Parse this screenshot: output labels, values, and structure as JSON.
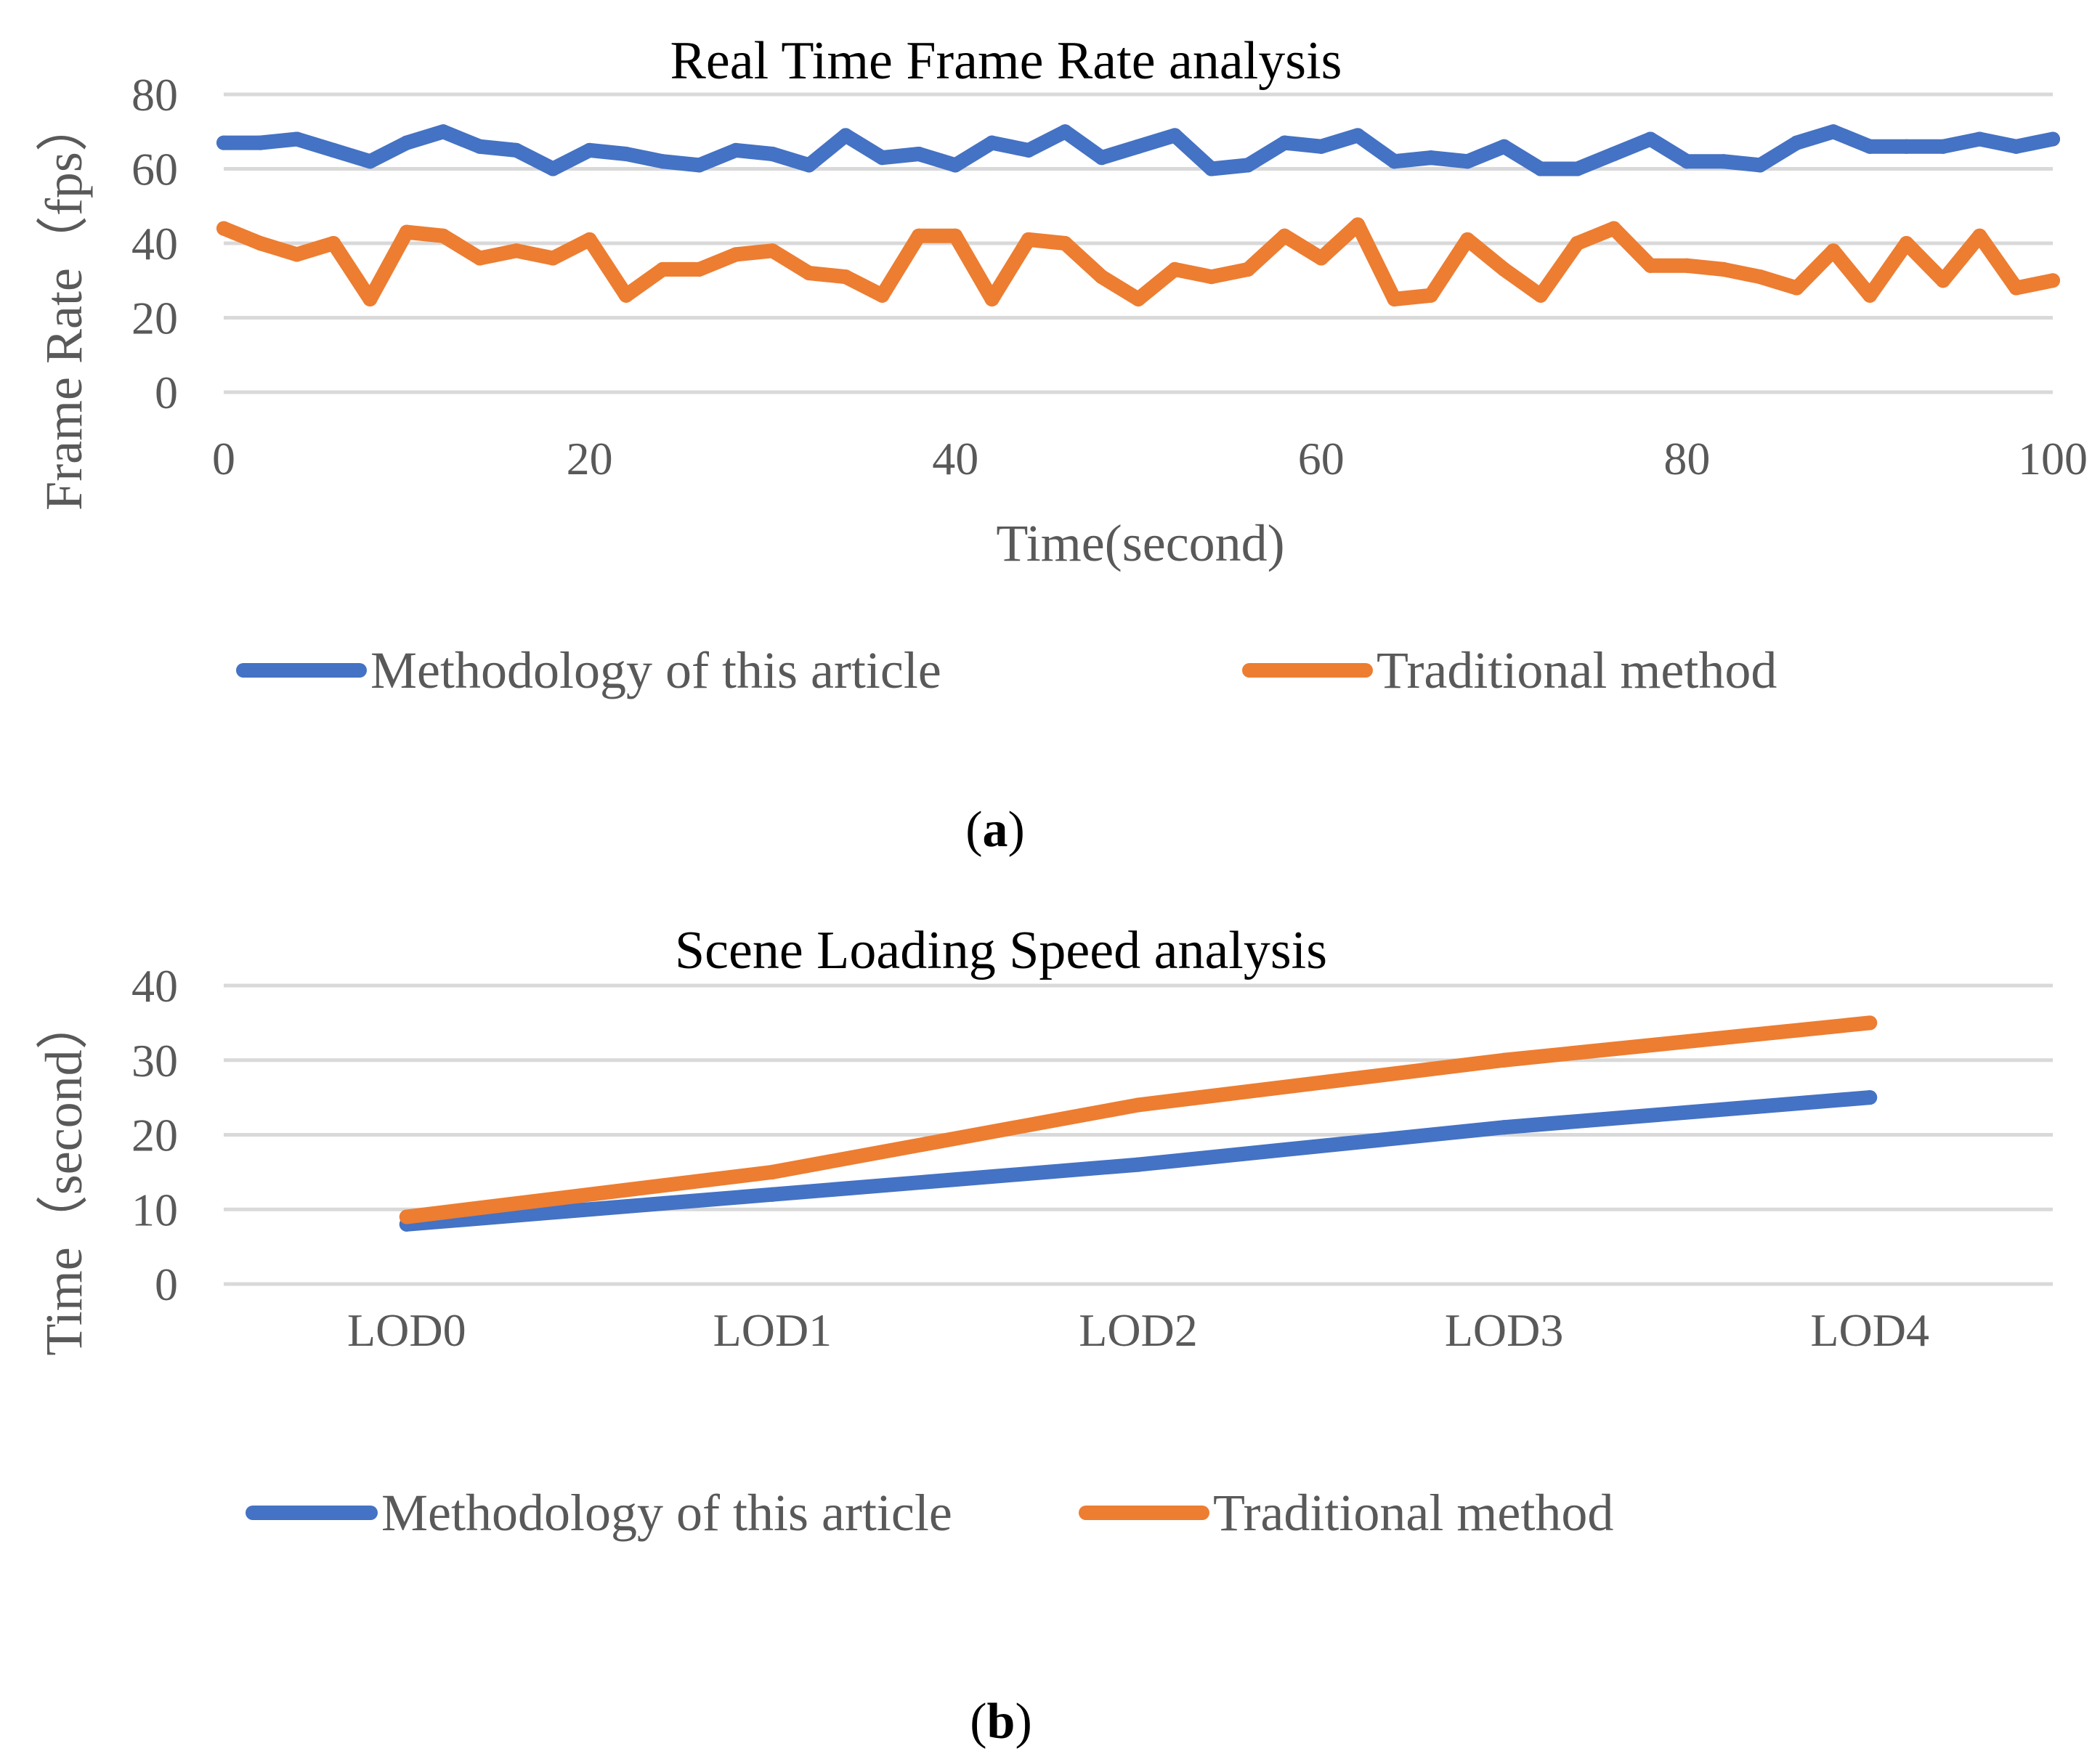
{
  "chart_data": [
    {
      "type": "line",
      "title": "Real Time Frame Rate analysis",
      "xlabel": "Time(second)",
      "ylabel": "Frame Rate（fps）",
      "xlim": [
        0,
        100
      ],
      "ylim": [
        0,
        80
      ],
      "xticks": [
        "0",
        "20",
        "40",
        "60",
        "80",
        "100"
      ],
      "yticks": [
        "0",
        "20",
        "40",
        "60",
        "80"
      ],
      "grid": true,
      "legend_position": "bottom",
      "panel_label": "a",
      "x": [
        0,
        2,
        4,
        6,
        8,
        10,
        12,
        14,
        16,
        18,
        20,
        22,
        24,
        26,
        28,
        30,
        32,
        34,
        36,
        38,
        40,
        42,
        44,
        46,
        48,
        50,
        52,
        54,
        56,
        58,
        60,
        62,
        64,
        66,
        68,
        70,
        72,
        74,
        76,
        78,
        80,
        82,
        84,
        86,
        88,
        90,
        92,
        94,
        96,
        98,
        100
      ],
      "series": [
        {
          "name": "Methodology of this article",
          "color": "#4472c4",
          "values": [
            67,
            67,
            68,
            65,
            62,
            67,
            70,
            66,
            65,
            60,
            65,
            64,
            62,
            61,
            65,
            64,
            61,
            69,
            63,
            64,
            61,
            67,
            65,
            70,
            63,
            66,
            69,
            60,
            61,
            67,
            66,
            69,
            62,
            63,
            62,
            66,
            60,
            60,
            64,
            68,
            62,
            62,
            61,
            67,
            70,
            66,
            66,
            66,
            68,
            66,
            68
          ]
        },
        {
          "name": "Traditional method",
          "color": "#ed7d31",
          "values": [
            44,
            40,
            37,
            40,
            25,
            43,
            42,
            36,
            38,
            36,
            41,
            26,
            33,
            33,
            37,
            38,
            32,
            31,
            26,
            42,
            42,
            25,
            41,
            40,
            31,
            25,
            33,
            31,
            33,
            42,
            36,
            45,
            25,
            26,
            41,
            33,
            26,
            40,
            44,
            34,
            34,
            33,
            31,
            28,
            38,
            26,
            40,
            30,
            42,
            28,
            30
          ]
        }
      ]
    },
    {
      "type": "line",
      "title": "Scene Loading Speed analysis",
      "xlabel": "",
      "ylabel": "Time（second）",
      "ylim": [
        0,
        40
      ],
      "yticks": [
        "0",
        "10",
        "20",
        "30",
        "40"
      ],
      "categories": [
        "LOD0",
        "LOD1",
        "LOD2",
        "LOD3",
        "LOD4"
      ],
      "grid": true,
      "legend_position": "bottom",
      "panel_label": "b",
      "series": [
        {
          "name": "Methodology of this article",
          "color": "#4472c4",
          "values": [
            8,
            12,
            16,
            21,
            25
          ]
        },
        {
          "name": "Traditional method",
          "color": "#ed7d31",
          "values": [
            9,
            15,
            24,
            30,
            35
          ]
        }
      ]
    }
  ]
}
